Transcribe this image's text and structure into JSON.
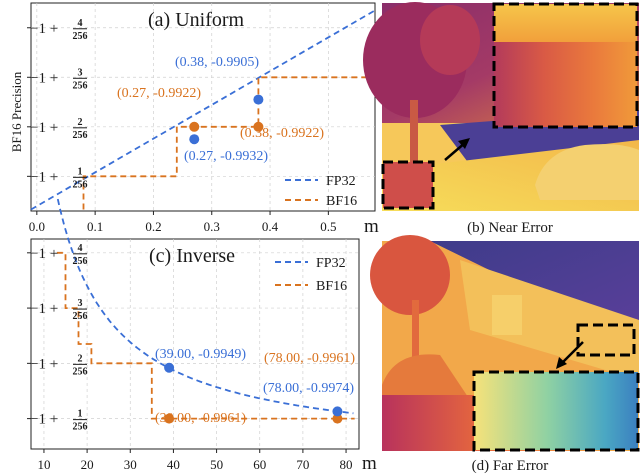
{
  "colors": {
    "fp32": "#3a6fd6",
    "bf16": "#d9731f",
    "text": "#1a1a1a",
    "grid": "#d0d0d0"
  },
  "panel_a": {
    "title": "(a) Uniform",
    "ylabel": "BF16 Precision",
    "xunit": "m",
    "legend": [
      "FP32",
      "BF16"
    ],
    "annotations": [
      {
        "text": "(0.38, -0.9905)",
        "series": "fp32"
      },
      {
        "text": "(0.27, -0.9922)",
        "series": "bf16"
      },
      {
        "text": "(0.38, -0.9922)",
        "series": "bf16"
      },
      {
        "text": "(0.27, -0.9932)",
        "series": "fp32"
      }
    ]
  },
  "panel_b": {
    "caption": "(b) Near Error"
  },
  "panel_c": {
    "title": "(c) Inverse",
    "xunit": "m",
    "legend": [
      "FP32",
      "BF16"
    ],
    "annotations": [
      {
        "text": "(39.00, -0.9949)",
        "series": "fp32"
      },
      {
        "text": "(78.00, -0.9961)",
        "series": "bf16"
      },
      {
        "text": "(78.00, -0.9974)",
        "series": "fp32"
      },
      {
        "text": "(39.00, -0.9961)",
        "series": "bf16"
      }
    ]
  },
  "panel_d": {
    "caption": "(d) Far Error"
  },
  "chart_data": [
    {
      "type": "line",
      "title": "(a) Uniform",
      "xlabel": "m",
      "ylabel": "BF16 Precision",
      "xlim": [
        -0.01,
        0.58
      ],
      "ylim": [
        0.3,
        4.5
      ],
      "x_ticks": [
        "0.0",
        "0.1",
        "0.2",
        "0.3",
        "0.4",
        "0.5"
      ],
      "y_ticks": [
        {
          "value": 1,
          "label": "-1 + 1/256"
        },
        {
          "value": 2,
          "label": "-1 + 2/256"
        },
        {
          "value": 3,
          "label": "-1 + 3/256"
        },
        {
          "value": 4,
          "label": "-1 + 4/256"
        }
      ],
      "grid": true,
      "legend_position": "bottom-right",
      "series": [
        {
          "name": "FP32",
          "style": "dashed",
          "x": [
            -0.01,
            0.58
          ],
          "y": [
            0.33,
            4.35
          ]
        },
        {
          "name": "BF16",
          "style": "dashed-step",
          "x": [
            0.08,
            0.08,
            0.24,
            0.24,
            0.38,
            0.38,
            0.58
          ],
          "y": [
            0.33,
            1,
            1,
            2,
            2,
            3,
            3
          ]
        }
      ],
      "points": [
        {
          "x": 0.38,
          "y": 2.55,
          "series": "FP32"
        },
        {
          "x": 0.27,
          "y": 2.0,
          "series": "BF16"
        },
        {
          "x": 0.38,
          "y": 2.0,
          "series": "BF16"
        },
        {
          "x": 0.27,
          "y": 1.75,
          "series": "FP32"
        }
      ]
    },
    {
      "type": "line",
      "title": "(c) Inverse",
      "xlabel": "m",
      "xlim": [
        7,
        83
      ],
      "ylim": [
        0.45,
        4.25
      ],
      "x_ticks": [
        "10",
        "20",
        "30",
        "40",
        "50",
        "60",
        "70",
        "80"
      ],
      "y_ticks": [
        {
          "value": 1,
          "label": "-1 + 1/256"
        },
        {
          "value": 2,
          "label": "-1 + 2/256"
        },
        {
          "value": 3,
          "label": "-1 + 3/256"
        },
        {
          "value": 4,
          "label": "-1 + 4/256"
        }
      ],
      "grid": true,
      "legend_position": "top-right",
      "series": [
        {
          "name": "FP32",
          "style": "dashed",
          "formula": "y = 0.35 + 61/x"
        },
        {
          "name": "BF16",
          "style": "dashed-step",
          "x": [
            13,
            15,
            15,
            18,
            18,
            21,
            21,
            35,
            35,
            82
          ],
          "y": [
            4,
            4,
            3,
            3,
            2.35,
            2.35,
            2,
            2,
            1,
            1
          ]
        }
      ],
      "points": [
        {
          "x": 39,
          "y": 1.92,
          "series": "FP32"
        },
        {
          "x": 39,
          "y": 1.0,
          "series": "BF16"
        },
        {
          "x": 78,
          "y": 1.0,
          "series": "BF16"
        },
        {
          "x": 78,
          "y": 1.13,
          "series": "FP32"
        }
      ]
    }
  ]
}
